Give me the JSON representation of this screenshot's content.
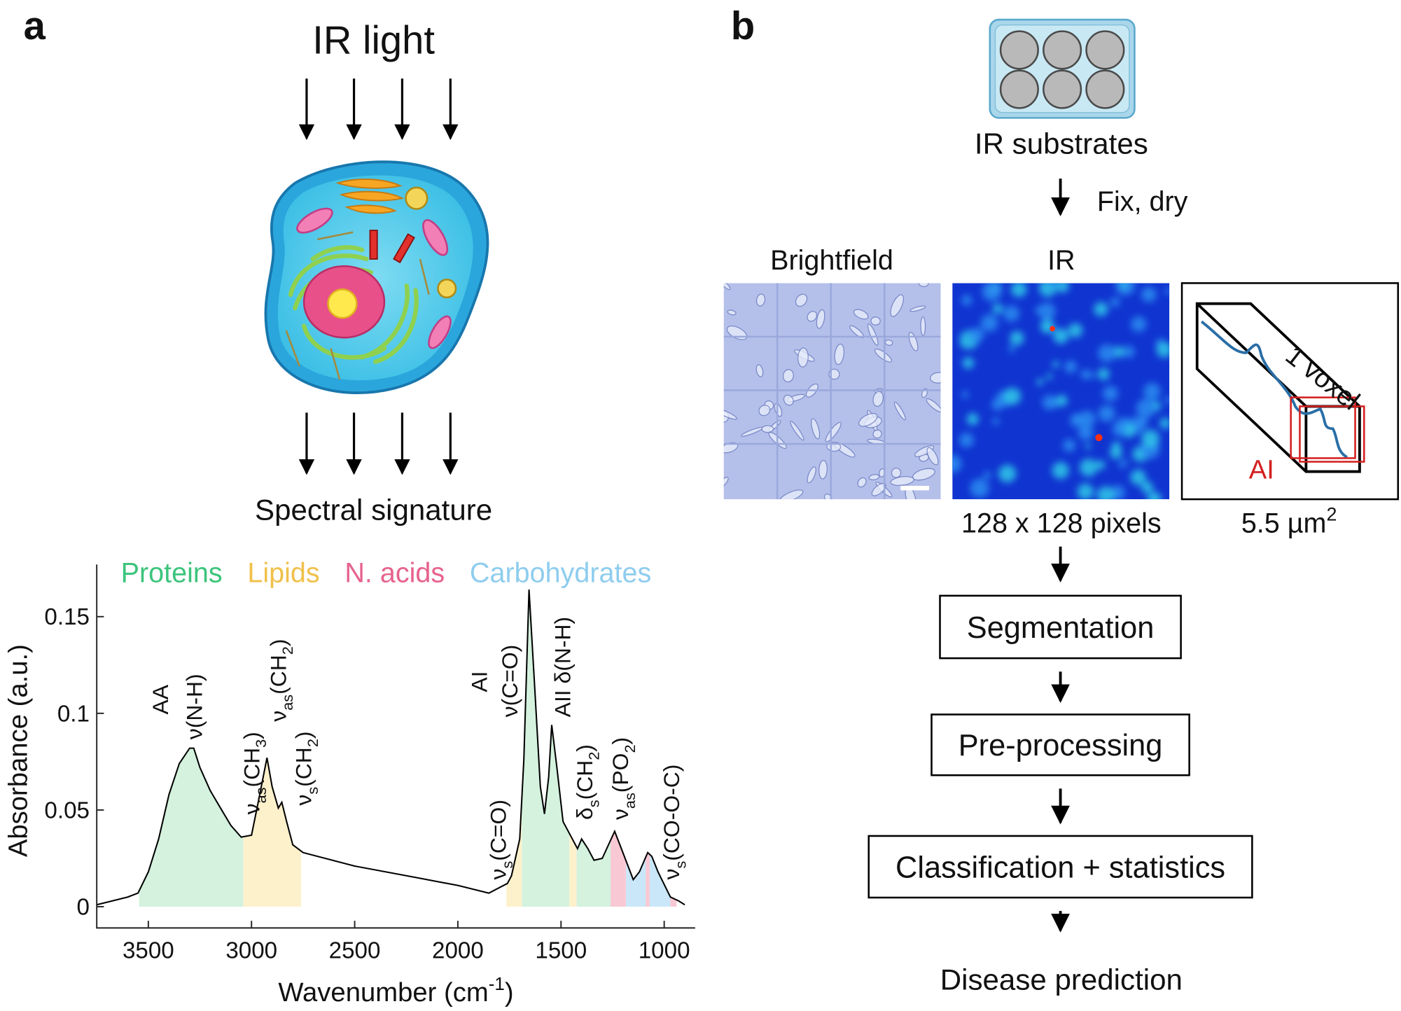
{
  "panel_a": {
    "label": "a",
    "title": "IR light",
    "output": "Spectral signature"
  },
  "chart_data": {
    "type": "line",
    "x_label": [
      "Wavenumber (cm",
      {
        "sup": "-1"
      },
      ")"
    ],
    "y_label": "Absorbance (a.u.)",
    "x": [
      3750,
      3600,
      3550,
      3500,
      3450,
      3400,
      3350,
      3300,
      3280,
      3250,
      3200,
      3150,
      3100,
      3050,
      3000,
      2960,
      2925,
      2900,
      2870,
      2853,
      2830,
      2800,
      2750,
      2500,
      2200,
      2000,
      1850,
      1760,
      1740,
      1700,
      1680,
      1655,
      1630,
      1600,
      1580,
      1560,
      1545,
      1520,
      1490,
      1455,
      1420,
      1400,
      1370,
      1340,
      1300,
      1240,
      1200,
      1150,
      1120,
      1080,
      1060,
      1030,
      970,
      930,
      900
    ],
    "y": [
      0.001,
      0.005,
      0.007,
      0.018,
      0.035,
      0.058,
      0.074,
      0.082,
      0.082,
      0.072,
      0.06,
      0.051,
      0.042,
      0.036,
      0.037,
      0.058,
      0.077,
      0.062,
      0.051,
      0.054,
      0.044,
      0.032,
      0.028,
      0.021,
      0.015,
      0.011,
      0.007,
      0.012,
      0.016,
      0.035,
      0.076,
      0.164,
      0.118,
      0.062,
      0.048,
      0.067,
      0.094,
      0.072,
      0.044,
      0.037,
      0.03,
      0.035,
      0.03,
      0.024,
      0.025,
      0.039,
      0.028,
      0.014,
      0.018,
      0.028,
      0.026,
      0.018,
      0.005,
      0.003,
      0.001
    ],
    "color": "#000000",
    "xlim": [
      3750,
      850
    ],
    "ylim": [
      -0.011,
      0.177
    ],
    "xticks": [
      3500,
      3000,
      2500,
      2000,
      1500,
      1000
    ],
    "yticks": [
      0,
      0.05,
      0.1,
      0.15
    ],
    "groups": [
      {
        "name": "Proteins",
        "color": "#3cc47c",
        "fill": "#d4f2de",
        "ranges": [
          [
            3545,
            3040
          ],
          [
            1690,
            1460
          ],
          [
            1425,
            1260
          ]
        ]
      },
      {
        "name": "Lipids",
        "color": "#f0c04a",
        "fill": "#fdf1cc",
        "ranges": [
          [
            3040,
            2760
          ],
          [
            1765,
            1690
          ],
          [
            1460,
            1425
          ]
        ]
      },
      {
        "name": "N. acids",
        "color": "#e6628c",
        "fill": "#f8c9d5",
        "ranges": [
          [
            1260,
            1185
          ],
          [
            1090,
            1070
          ],
          [
            970,
            940
          ]
        ]
      },
      {
        "name": "Carbohydrates",
        "color": "#8ecdee",
        "fill": "#c9e7f8",
        "ranges": [
          [
            1185,
            1090
          ],
          [
            1070,
            970
          ]
        ]
      }
    ],
    "annotations": [
      [
        "AA"
      ],
      [
        "ν(N-H)"
      ],
      [
        "ν",
        {
          "sub": "as"
        },
        "(CH",
        {
          "sub": "3"
        },
        ")"
      ],
      [
        "ν",
        {
          "sub": "as"
        },
        "(CH",
        {
          "sub": "2"
        },
        ")"
      ],
      [
        "ν",
        {
          "sub": "s"
        },
        "(CH",
        {
          "sub": "2"
        },
        ")"
      ],
      [
        "AI"
      ],
      [
        "ν(C=O)"
      ],
      [
        "AII δ(N-H)"
      ],
      [
        "ν",
        {
          "sub": "s"
        },
        "(C=O)"
      ],
      [
        "δ",
        {
          "sub": "s"
        },
        "(CH",
        {
          "sub": "2"
        },
        ")"
      ],
      [
        "ν",
        {
          "sub": "as"
        },
        "(PO",
        {
          "sub": "2"
        },
        ")"
      ],
      [
        "ν",
        {
          "sub": "s"
        },
        "(CO-O-C)"
      ]
    ]
  },
  "panel_b": {
    "label": "b",
    "substrates": "IR substrates",
    "prep": "Fix, dry",
    "brightfield": "Brightfield",
    "ir": "IR",
    "pixels": "128 x 128 pixels",
    "voxel": "1 voxel",
    "voxel_ai": "AI",
    "area": [
      "5.5 µm",
      {
        "sup": "2"
      }
    ],
    "steps": [
      "Segmentation",
      "Pre-processing",
      "Classification + statistics"
    ],
    "result": "Disease prediction"
  }
}
